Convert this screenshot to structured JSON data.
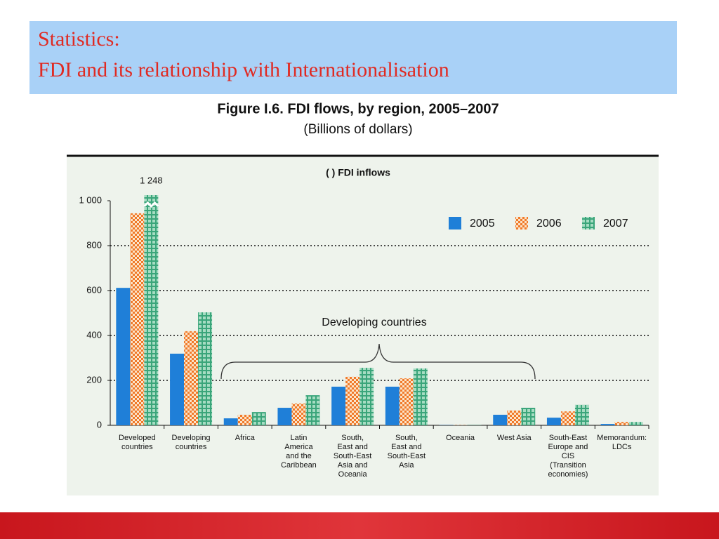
{
  "header": {
    "title_line1": "Statistics:",
    "title_line2": "FDI and its relationship with Internationalisation"
  },
  "chart_data": {
    "type": "bar",
    "title": "Figure I.6. FDI flows, by region, 2005–2007",
    "subtitle": "(Billions of dollars)",
    "panel_title": "( ) FDI inflows",
    "annotation": "Developing countries",
    "categories": [
      "Developed\ncountries",
      "Developing\ncountries",
      "Africa",
      "Latin\nAmerica\nand the\nCaribbean",
      "South,\nEast and\nSouth-East\nAsia and\nOceania",
      "South,\nEast and\nSouth-East\nAsia",
      "Oceania",
      "West Asia",
      "South-East\nEurope and\nCIS\n(Transition\neconomies)",
      "Memorandum:\nLDCs"
    ],
    "series": [
      {
        "name": "2005",
        "color": "#1f7fd8",
        "values": [
          612,
          319,
          31,
          78,
          172,
          172,
          1,
          47,
          34,
          6
        ]
      },
      {
        "name": "2006",
        "color": "#f07a2a",
        "values": [
          944,
          419,
          47,
          97,
          216,
          209,
          1,
          66,
          62,
          15
        ]
      },
      {
        "name": "2007",
        "color": "#3aa57a",
        "values": [
          1248,
          503,
          59,
          134,
          256,
          253,
          1,
          78,
          91,
          15
        ],
        "value_labels": [
          "1 248",
          null,
          null,
          null,
          null,
          null,
          null,
          null,
          null,
          null
        ]
      }
    ],
    "ylim": [
      0,
      1000
    ],
    "yticks": [
      0,
      200,
      400,
      600,
      800,
      {
        "value": 1000,
        "label": "1 000"
      }
    ],
    "grid": true,
    "legend": "top-right"
  }
}
